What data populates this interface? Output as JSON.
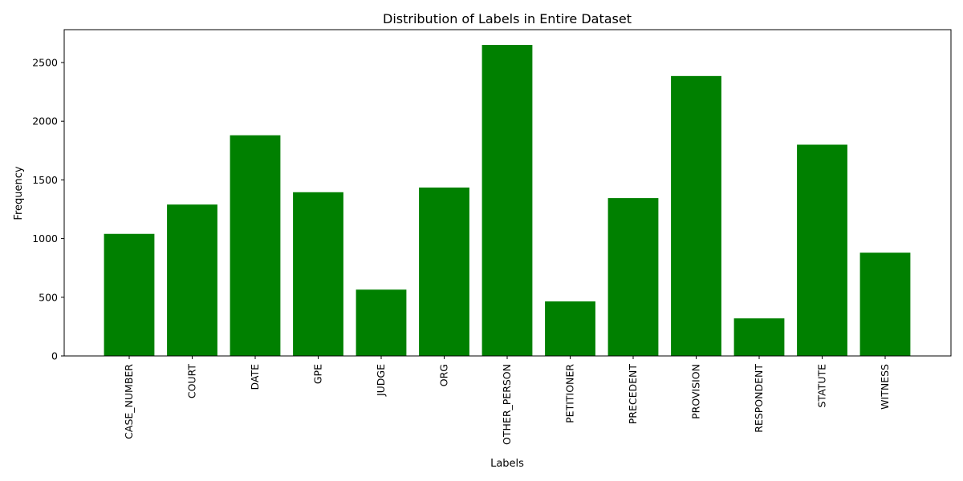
{
  "chart_data": {
    "type": "bar",
    "title": "Distribution of Labels in Entire Dataset",
    "xlabel": "Labels",
    "ylabel": "Frequency",
    "categories": [
      "CASE_NUMBER",
      "COURT",
      "DATE",
      "GPE",
      "JUDGE",
      "ORG",
      "OTHER_PERSON",
      "PETITIONER",
      "PRECEDENT",
      "PROVISION",
      "RESPONDENT",
      "STATUTE",
      "WITNESS"
    ],
    "values": [
      1040,
      1290,
      1880,
      1395,
      565,
      1435,
      2650,
      465,
      1345,
      2385,
      320,
      1800,
      880
    ],
    "ylim": [
      0,
      2780
    ],
    "yticks": [
      0,
      500,
      1000,
      1500,
      2000,
      2500
    ],
    "bar_color": "#008000",
    "grid": false,
    "legend": "none"
  }
}
